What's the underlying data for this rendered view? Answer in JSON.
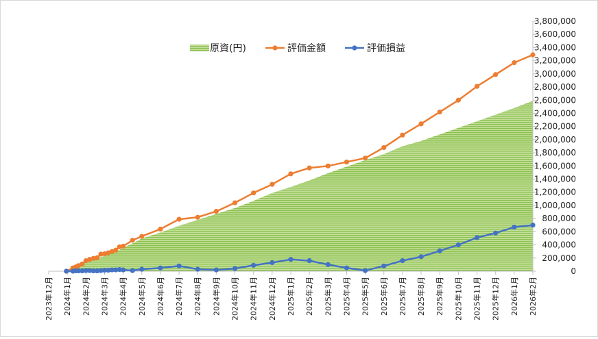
{
  "chart_data": {
    "type": "line",
    "title": "",
    "xlabel": "",
    "ylabel": "",
    "x_ticks": [
      "2023年12月",
      "2024年1月",
      "2024年2月",
      "2024年3月",
      "2024年4月",
      "2024年5月",
      "2024年6月",
      "2024年7月",
      "2024年8月",
      "2024年9月",
      "2024年10月",
      "2024年11月",
      "2024年12月",
      "2025年1月",
      "2025年2月",
      "2025年3月",
      "2025年4月",
      "2025年5月",
      "2025年6月",
      "2025年7月",
      "2025年8月",
      "2025年9月",
      "2025年10月",
      "2025年11月",
      "2025年12月",
      "2026年1月",
      "2026年2月"
    ],
    "y_ticks": [
      "0",
      "200,000",
      "400,000",
      "600,000",
      "800,000",
      "1,000,000",
      "1,200,000",
      "1,400,000",
      "1,600,000",
      "1,800,000",
      "2,000,000",
      "2,200,000",
      "2,400,000",
      "2,600,000",
      "2,800,000",
      "3,000,000",
      "3,200,000",
      "3,400,000",
      "3,600,000",
      "3,800,000"
    ],
    "ylim": [
      0,
      3800000
    ],
    "y_axis_position": "right",
    "legend_position": "top",
    "grid": false,
    "series": [
      {
        "name": "原資(円)",
        "kind": "area",
        "color": "#92c353",
        "x": [
          0.95,
          1.3,
          1.45,
          1.6,
          1.8,
          2.0,
          2.2,
          2.4,
          2.6,
          2.8,
          3.0,
          3.2,
          3.4,
          3.6,
          3.8,
          4.0,
          4.5,
          5.0,
          6.0,
          7.0,
          8.0,
          9.0,
          10.0,
          11.0,
          12.0,
          13.0,
          14.0,
          15.0,
          16.0,
          17.0,
          18.0,
          19.0,
          20.0,
          21.0,
          22.0,
          23.0,
          24.0,
          25.0,
          26.0
        ],
        "values": [
          0,
          50000,
          60000,
          80000,
          100000,
          150000,
          170000,
          190000,
          200000,
          210000,
          240000,
          260000,
          280000,
          300000,
          320000,
          360000,
          420000,
          500000,
          590000,
          690000,
          780000,
          870000,
          960000,
          1070000,
          1190000,
          1280000,
          1380000,
          1490000,
          1590000,
          1690000,
          1780000,
          1900000,
          1980000,
          2080000,
          2180000,
          2280000,
          2380000,
          2480000,
          2590000
        ]
      },
      {
        "name": "評価金額",
        "kind": "line",
        "color": "#ed7d31",
        "x": [
          0.95,
          1.3,
          1.45,
          1.6,
          1.8,
          2.0,
          2.2,
          2.4,
          2.6,
          2.8,
          3.0,
          3.2,
          3.4,
          3.6,
          3.8,
          4.0,
          4.5,
          5.0,
          6.0,
          7.0,
          8.0,
          9.0,
          10.0,
          11.0,
          12.0,
          13.0,
          14.0,
          15.0,
          16.0,
          17.0,
          18.0,
          19.0,
          20.0,
          21.0,
          22.0,
          23.0,
          24.0,
          25.0,
          26.0
        ],
        "values": [
          0,
          50000,
          65000,
          85000,
          110000,
          160000,
          180000,
          195000,
          205000,
          260000,
          265000,
          280000,
          300000,
          320000,
          370000,
          380000,
          470000,
          530000,
          640000,
          790000,
          820000,
          910000,
          1040000,
          1190000,
          1320000,
          1480000,
          1570000,
          1600000,
          1660000,
          1720000,
          1880000,
          2070000,
          2240000,
          2420000,
          2600000,
          2810000,
          2990000,
          3170000,
          3290000
        ]
      },
      {
        "name": "評価損益",
        "kind": "line",
        "color": "#4472c4",
        "x": [
          0.95,
          1.3,
          1.45,
          1.6,
          1.8,
          2.0,
          2.2,
          2.4,
          2.6,
          2.8,
          3.0,
          3.2,
          3.4,
          3.6,
          3.8,
          4.0,
          4.5,
          5.0,
          6.0,
          7.0,
          8.0,
          9.0,
          10.0,
          11.0,
          12.0,
          13.0,
          14.0,
          15.0,
          16.0,
          17.0,
          18.0,
          19.0,
          20.0,
          21.0,
          22.0,
          23.0,
          24.0,
          25.0,
          26.0
        ],
        "values": [
          0,
          0,
          5000,
          5000,
          5000,
          10000,
          10000,
          5000,
          5000,
          10000,
          15000,
          15000,
          20000,
          20000,
          25000,
          20000,
          10000,
          30000,
          50000,
          80000,
          30000,
          20000,
          40000,
          90000,
          130000,
          180000,
          160000,
          100000,
          50000,
          10000,
          80000,
          160000,
          220000,
          310000,
          400000,
          510000,
          580000,
          670000,
          700000
        ]
      }
    ]
  }
}
